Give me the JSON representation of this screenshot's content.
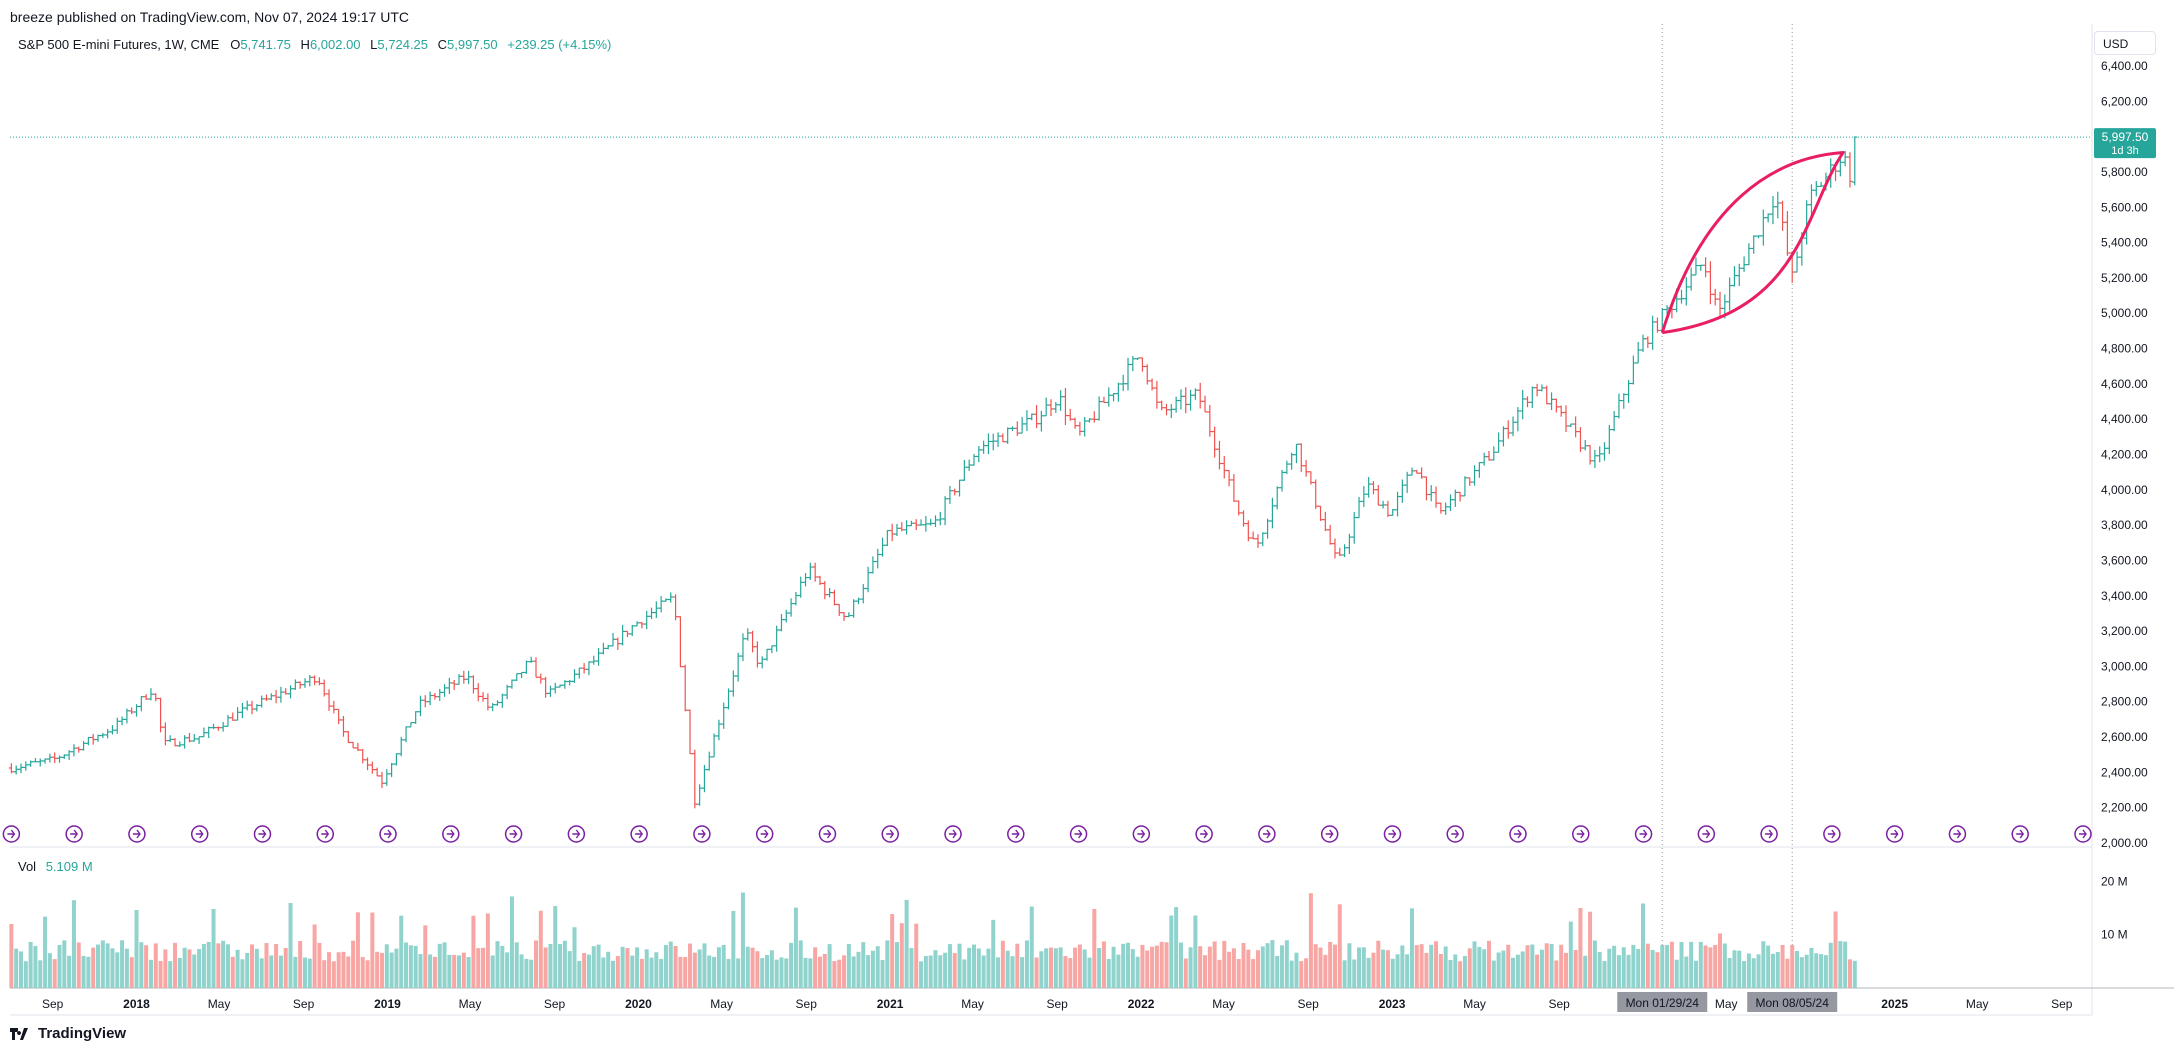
{
  "publisher_line": "breeze published on TradingView.com, Nov 07, 2024 19:17 UTC",
  "legend": {
    "symbol": "S&P 500 E-mini Futures, 1W, CME",
    "open_key": "O",
    "open": "5,741.75",
    "high_key": "H",
    "high": "6,002.00",
    "low_key": "L",
    "low": "5,724.25",
    "close_key": "C",
    "close": "5,997.50",
    "change": "+239.25 (+4.15%)"
  },
  "currency": "USD",
  "price_tag": {
    "price": "5,997.50",
    "countdown": "1d 3h"
  },
  "volume_legend": {
    "label": "Vol",
    "value": "5.109 M"
  },
  "footer": {
    "brand": "TradingView"
  },
  "colors": {
    "up": "#26a69a",
    "down": "#ef5350",
    "vol_up": "#8fd3cc",
    "vol_down": "#f7a6a4",
    "annotation": "#e91e63",
    "event_icon": "#7b1fa2",
    "crosshair_tag": "#9598a1"
  },
  "chart_data": {
    "type": "ohlc",
    "title": "S&P 500 E-mini Futures, 1W, CME",
    "y_axis": {
      "ticks": [
        2000,
        2200,
        2400,
        2600,
        2800,
        3000,
        3200,
        3400,
        3600,
        3800,
        4000,
        4200,
        4400,
        4600,
        4800,
        5000,
        5200,
        5400,
        5600,
        5800,
        6000,
        6200,
        6400
      ],
      "tick_labels": [
        "2,000.00",
        "2,200.00",
        "2,400.00",
        "2,600.00",
        "2,800.00",
        "3,000.00",
        "3,200.00",
        "3,400.00",
        "3,600.00",
        "3,800.00",
        "4,000.00",
        "4,200.00",
        "4,400.00",
        "4,600.00",
        "4,800.00",
        "5,000.00",
        "5,200.00",
        "5,400.00",
        "5,600.00",
        "5,800.00",
        "6,000.00",
        "6,200.00",
        "6,400.00"
      ],
      "range": [
        2000,
        6400
      ]
    },
    "volume_axis": {
      "tick_labels": [
        "10 M",
        "20 M"
      ],
      "ticks": [
        10,
        20
      ],
      "unit": "M"
    },
    "x_axis": {
      "range": [
        "2017-07-01",
        "2025-10-15"
      ],
      "labels": [
        {
          "date": "2017-09-01",
          "text": "Sep",
          "bold": false
        },
        {
          "date": "2018-01-01",
          "text": "2018",
          "bold": true
        },
        {
          "date": "2018-05-01",
          "text": "May",
          "bold": false
        },
        {
          "date": "2018-09-01",
          "text": "Sep",
          "bold": false
        },
        {
          "date": "2019-01-01",
          "text": "2019",
          "bold": true
        },
        {
          "date": "2019-05-01",
          "text": "May",
          "bold": false
        },
        {
          "date": "2019-09-01",
          "text": "Sep",
          "bold": false
        },
        {
          "date": "2020-01-01",
          "text": "2020",
          "bold": true
        },
        {
          "date": "2020-05-01",
          "text": "May",
          "bold": false
        },
        {
          "date": "2020-09-01",
          "text": "Sep",
          "bold": false
        },
        {
          "date": "2021-01-01",
          "text": "2021",
          "bold": true
        },
        {
          "date": "2021-05-01",
          "text": "May",
          "bold": false
        },
        {
          "date": "2021-09-01",
          "text": "Sep",
          "bold": false
        },
        {
          "date": "2022-01-01",
          "text": "2022",
          "bold": true
        },
        {
          "date": "2022-05-01",
          "text": "May",
          "bold": false
        },
        {
          "date": "2022-09-01",
          "text": "Sep",
          "bold": false
        },
        {
          "date": "2023-01-01",
          "text": "2023",
          "bold": true
        },
        {
          "date": "2023-05-01",
          "text": "May",
          "bold": false
        },
        {
          "date": "2023-09-01",
          "text": "Sep",
          "bold": false
        },
        {
          "date": "2024-05-01",
          "text": "May",
          "bold": false
        },
        {
          "date": "2025-01-01",
          "text": "2025",
          "bold": true
        },
        {
          "date": "2025-05-01",
          "text": "May",
          "bold": false
        },
        {
          "date": "2025-09-01",
          "text": "Sep",
          "bold": false
        }
      ],
      "highlighted_dates": [
        {
          "date": "2024-01-29",
          "text": "Mon 01/29/24"
        },
        {
          "date": "2024-08-05",
          "text": "Mon 08/05/24"
        }
      ]
    },
    "price_anchors": [
      [
        "2017-07-03",
        2425
      ],
      [
        "2017-09-01",
        2470
      ],
      [
        "2017-12-01",
        2660
      ],
      [
        "2018-01-26",
        2880
      ],
      [
        "2018-02-09",
        2560
      ],
      [
        "2018-04-01",
        2600
      ],
      [
        "2018-06-01",
        2740
      ],
      [
        "2018-09-21",
        2945
      ],
      [
        "2018-10-26",
        2640
      ],
      [
        "2018-12-24",
        2350
      ],
      [
        "2019-02-15",
        2780
      ],
      [
        "2019-04-26",
        2945
      ],
      [
        "2019-05-31",
        2750
      ],
      [
        "2019-07-26",
        3025
      ],
      [
        "2019-08-23",
        2840
      ],
      [
        "2019-10-25",
        3020
      ],
      [
        "2019-12-27",
        3240
      ],
      [
        "2020-02-21",
        3390
      ],
      [
        "2020-03-23",
        2240
      ],
      [
        "2020-06-05",
        3190
      ],
      [
        "2020-06-26",
        3000
      ],
      [
        "2020-09-04",
        3550
      ],
      [
        "2020-10-30",
        3270
      ],
      [
        "2020-12-31",
        3760
      ],
      [
        "2021-03-05",
        3800
      ],
      [
        "2021-05-07",
        4230
      ],
      [
        "2021-07-30",
        4400
      ],
      [
        "2021-09-03",
        4530
      ],
      [
        "2021-10-01",
        4300
      ],
      [
        "2021-12-31",
        4770
      ],
      [
        "2022-01-28",
        4430
      ],
      [
        "2022-03-25",
        4540
      ],
      [
        "2022-05-20",
        3900
      ],
      [
        "2022-06-17",
        3670
      ],
      [
        "2022-08-12",
        4280
      ],
      [
        "2022-10-14",
        3570
      ],
      [
        "2022-11-25",
        4030
      ],
      [
        "2022-12-30",
        3860
      ],
      [
        "2023-02-03",
        4150
      ],
      [
        "2023-03-10",
        3860
      ],
      [
        "2023-05-26",
        4210
      ],
      [
        "2023-07-28",
        4600
      ],
      [
        "2023-10-27",
        4140
      ],
      [
        "2023-12-29",
        4820
      ],
      [
        "2024-03-29",
        5290
      ],
      [
        "2024-04-19",
        5000
      ],
      [
        "2024-07-12",
        5680
      ],
      [
        "2024-08-05",
        5200
      ],
      [
        "2024-08-30",
        5650
      ],
      [
        "2024-10-18",
        5900
      ],
      [
        "2024-11-01",
        5740
      ],
      [
        "2024-11-07",
        5997.5
      ]
    ],
    "last_bar": {
      "open": 5741.75,
      "high": 6002.0,
      "low": 5724.25,
      "close": 5997.5
    }
  },
  "annotation": {
    "shape": "curved-arc",
    "description_visible": false,
    "start": {
      "date": "2024-01-29",
      "price": 4890
    },
    "end": {
      "date": "2024-10-18",
      "price": 5910
    }
  }
}
